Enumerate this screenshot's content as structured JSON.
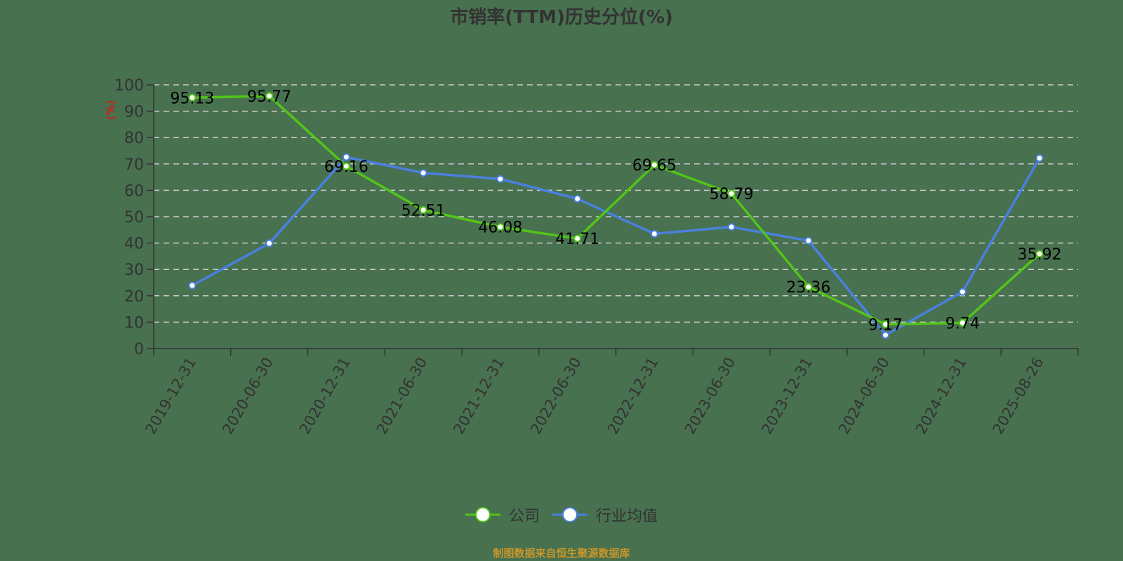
{
  "title": "市销率(TTM)历史分位(%)",
  "source_note": "制图数据来自恒生聚源数据库",
  "colors": {
    "background": "#48714f",
    "company": "#52c41a",
    "industry": "#4a80e0",
    "grid": "#cccccc",
    "axis": "#333333",
    "unit_label": "#ff0000",
    "source_note": "#c8962a"
  },
  "legend": [
    {
      "name": "公司",
      "color": "#52c41a"
    },
    {
      "name": "行业均值",
      "color": "#4a80e0"
    }
  ],
  "chart_data": {
    "type": "line",
    "title": "市销率(TTM)历史分位(%)",
    "xlabel": "",
    "ylabel": "(%)",
    "ylim": [
      0,
      100
    ],
    "yticks": [
      0,
      10,
      20,
      30,
      40,
      50,
      60,
      70,
      80,
      90,
      100
    ],
    "grid": true,
    "grid_style": "dashed",
    "legend_position": "bottom",
    "categories": [
      "2019-12-31",
      "2020-06-30",
      "2020-12-31",
      "2021-06-30",
      "2021-12-31",
      "2022-06-30",
      "2022-12-31",
      "2023-06-30",
      "2023-12-31",
      "2024-06-30",
      "2024-12-31",
      "2025-08-26"
    ],
    "series": [
      {
        "name": "公司",
        "color": "#52c41a",
        "show_labels": true,
        "values": [
          95.13,
          95.77,
          69.16,
          52.51,
          46.08,
          41.71,
          69.65,
          58.79,
          23.36,
          9.17,
          9.74,
          35.92
        ]
      },
      {
        "name": "行业均值",
        "color": "#4a80e0",
        "show_labels": false,
        "values": [
          23.9,
          39.9,
          72.6,
          66.6,
          64.3,
          56.8,
          43.5,
          46.1,
          40.9,
          5.1,
          21.5,
          72.2
        ]
      }
    ]
  }
}
